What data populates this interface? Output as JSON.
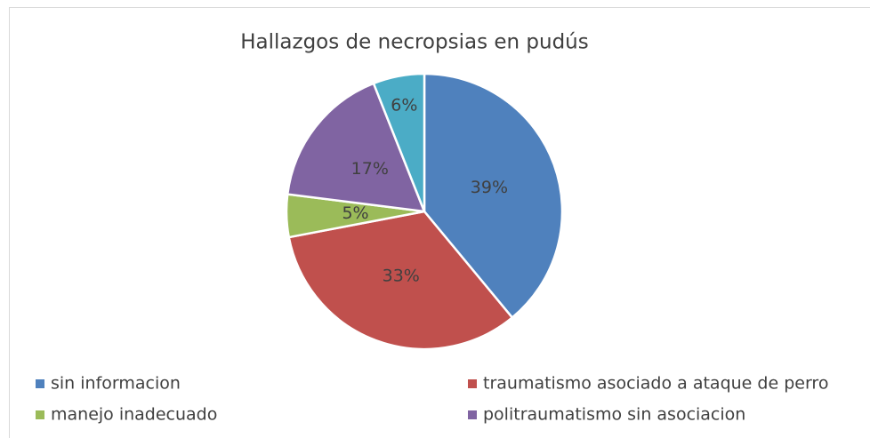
{
  "chart_data": {
    "type": "pie",
    "title": "Hallazgos de necropsias en pudús",
    "categories": [
      "sin informacion",
      "traumatismo asociado a ataque de perro",
      "manejo inadecuado",
      "politraumatismo sin asociacion",
      null
    ],
    "values": [
      39,
      33,
      5,
      17,
      6
    ],
    "value_labels": [
      "39%",
      "33%",
      "5%",
      "17%",
      "6%"
    ],
    "colors": [
      "#4f81bd",
      "#c0504d",
      "#9bbb59",
      "#8064a2",
      "#4bacc6"
    ],
    "legend": "bottom"
  }
}
